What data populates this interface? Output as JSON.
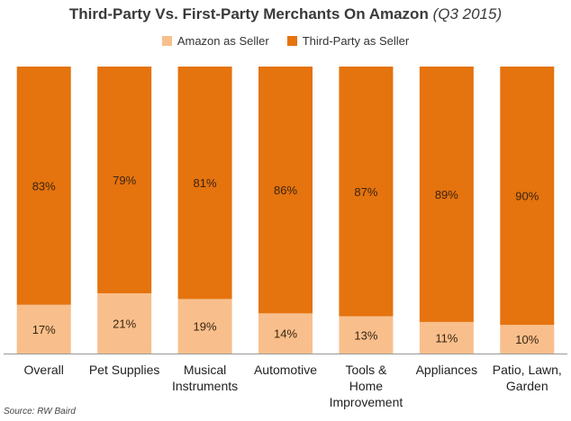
{
  "title": {
    "main": "Third-Party Vs. First-Party Merchants On Amazon",
    "sub": "(Q3 2015)"
  },
  "legend": [
    {
      "label": "Amazon as Seller",
      "color": "#f8bf8c"
    },
    {
      "label": "Third-Party as Seller",
      "color": "#e5730e"
    }
  ],
  "source": "Source: RW Baird",
  "chart_data": {
    "type": "bar",
    "stacked": true,
    "percent": true,
    "categories": [
      [
        "Overall"
      ],
      [
        "Pet Supplies"
      ],
      [
        "Musical",
        "Instruments"
      ],
      [
        "Automotive"
      ],
      [
        "Tools &",
        "Home",
        "Improvement"
      ],
      [
        "Appliances"
      ],
      [
        "Patio, Lawn,",
        "Garden"
      ]
    ],
    "series": [
      {
        "name": "Amazon as Seller",
        "color": "#f8bf8c",
        "values": [
          17,
          21,
          19,
          14,
          13,
          11,
          10
        ],
        "labels": [
          "17%",
          "21%",
          "19%",
          "14%",
          "13%",
          "11%",
          "10%"
        ]
      },
      {
        "name": "Third-Party as Seller",
        "color": "#e5730e",
        "values": [
          83,
          79,
          81,
          86,
          87,
          89,
          90
        ],
        "labels": [
          "83%",
          "79%",
          "81%",
          "86%",
          "87%",
          "89%",
          "90%"
        ]
      }
    ],
    "ylim": [
      0,
      100
    ],
    "legend_position": "top-center",
    "grid": false
  }
}
